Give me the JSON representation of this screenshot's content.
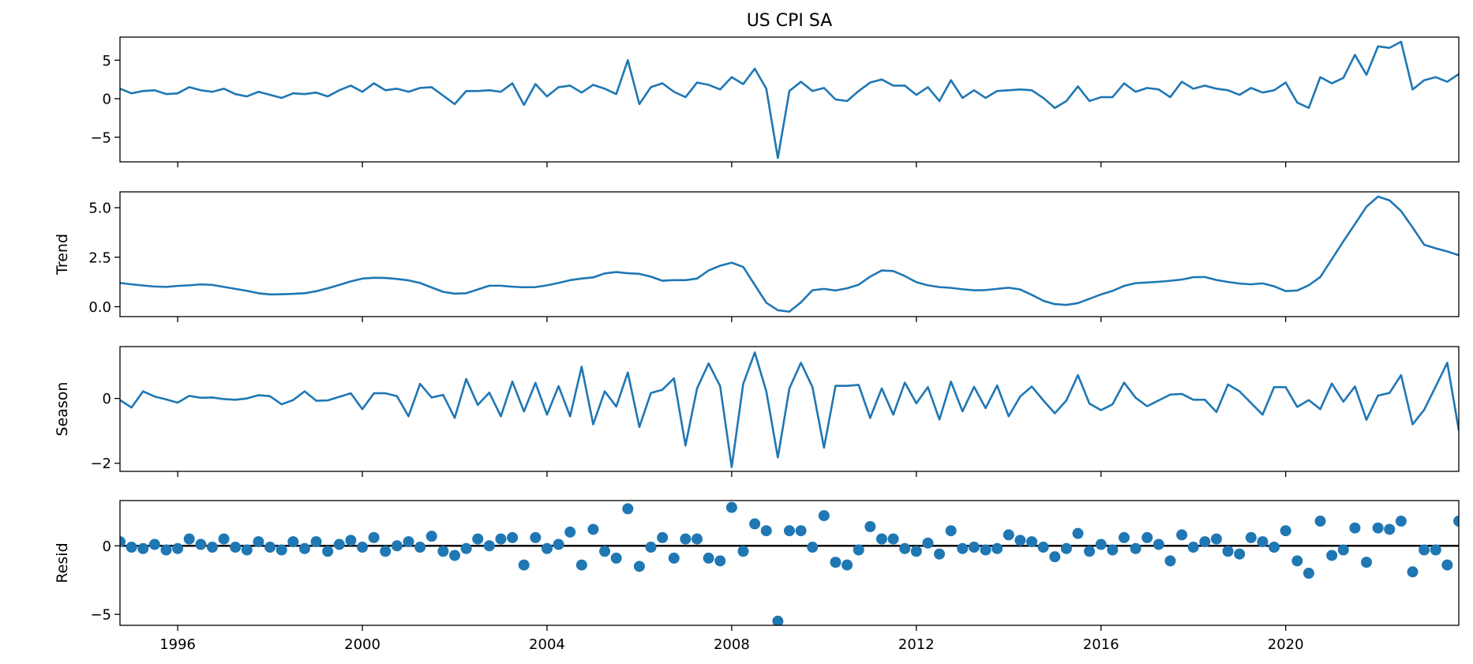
{
  "chart_data": {
    "type": "line",
    "title": "US CPI SA",
    "x_axis": {
      "type": "date",
      "range": [
        "1994-10-01",
        "2023-10-01"
      ],
      "ticks": [
        "1996",
        "2000",
        "2004",
        "2008",
        "2012",
        "2016",
        "2020"
      ]
    },
    "frequency": "quarterly",
    "x_start": "1994-10-01",
    "grid": false,
    "colors": {
      "series": "#1f77b4",
      "reference_line": "#000000"
    },
    "panels": [
      {
        "name": "observed",
        "ylabel": "",
        "type": "line",
        "ylim": [
          -8.2,
          8.0
        ],
        "yticks": [
          "5",
          "0",
          "−5"
        ],
        "ytick_values": [
          5,
          0,
          -5
        ],
        "values": [
          1.3,
          0.7,
          1.0,
          1.1,
          0.6,
          0.7,
          1.5,
          1.1,
          0.9,
          1.3,
          0.6,
          0.3,
          0.9,
          0.5,
          0.1,
          0.7,
          0.6,
          0.8,
          0.3,
          1.1,
          1.7,
          0.9,
          2.0,
          1.1,
          1.3,
          0.9,
          1.4,
          1.5,
          0.4,
          -0.7,
          1.0,
          1.0,
          1.1,
          0.9,
          2.0,
          -0.8,
          1.9,
          0.3,
          1.5,
          1.7,
          0.8,
          1.8,
          1.3,
          0.6,
          5.0,
          -0.7,
          1.5,
          2.0,
          0.9,
          0.2,
          2.1,
          1.8,
          1.2,
          2.8,
          1.9,
          3.9,
          1.3,
          -7.7,
          1.0,
          2.2,
          1.0,
          1.4,
          -0.1,
          -0.3,
          1.0,
          2.1,
          2.5,
          1.7,
          1.7,
          0.5,
          1.5,
          -0.3,
          2.4,
          0.1,
          1.1,
          0.1,
          1.0,
          1.1,
          1.2,
          1.1,
          0.1,
          -1.2,
          -0.3,
          1.6,
          -0.3,
          0.2,
          0.2,
          2.0,
          0.9,
          1.4,
          1.2,
          0.2,
          2.2,
          1.3,
          1.7,
          1.3,
          1.1,
          0.5,
          1.4,
          0.8,
          1.1,
          2.1,
          -0.5,
          -1.2,
          2.8,
          2.0,
          2.7,
          5.7,
          3.1,
          6.8,
          6.6,
          7.4,
          1.2,
          2.4,
          2.8,
          2.2,
          3.2,
          1.5
        ]
      },
      {
        "name": "trend",
        "ylabel": "Trend",
        "type": "line",
        "ylim": [
          -0.5,
          5.8
        ],
        "yticks": [
          "0.0",
          "2.5",
          "5.0"
        ],
        "ytick_values": [
          0,
          2.5,
          5
        ],
        "values": [
          1.2,
          1.13,
          1.07,
          1.02,
          1.0,
          1.05,
          1.08,
          1.13,
          1.1,
          1.0,
          0.9,
          0.8,
          0.68,
          0.62,
          0.63,
          0.65,
          0.68,
          0.78,
          0.93,
          1.1,
          1.28,
          1.42,
          1.46,
          1.45,
          1.4,
          1.33,
          1.2,
          0.97,
          0.75,
          0.66,
          0.68,
          0.87,
          1.06,
          1.06,
          1.01,
          0.98,
          0.99,
          1.08,
          1.2,
          1.34,
          1.42,
          1.48,
          1.68,
          1.75,
          1.69,
          1.66,
          1.52,
          1.31,
          1.34,
          1.34,
          1.42,
          1.83,
          2.07,
          2.22,
          2.01,
          1.1,
          0.2,
          -0.18,
          -0.25,
          0.22,
          0.83,
          0.9,
          0.82,
          0.93,
          1.11,
          1.52,
          1.83,
          1.8,
          1.55,
          1.24,
          1.08,
          0.99,
          0.95,
          0.88,
          0.83,
          0.84,
          0.9,
          0.96,
          0.87,
          0.6,
          0.3,
          0.13,
          0.09,
          0.18,
          0.4,
          0.62,
          0.8,
          1.05,
          1.19,
          1.22,
          1.26,
          1.31,
          1.37,
          1.49,
          1.5,
          1.35,
          1.25,
          1.17,
          1.13,
          1.18,
          1.03,
          0.79,
          0.82,
          1.08,
          1.5,
          2.4,
          3.3,
          4.17,
          5.05,
          5.56,
          5.37,
          4.83,
          4.0,
          3.13,
          2.95,
          2.79,
          2.6,
          2.46
        ]
      },
      {
        "name": "seasonal",
        "ylabel": "Season",
        "type": "line",
        "ylim": [
          -2.25,
          1.6
        ],
        "yticks": [
          "−2",
          "0"
        ],
        "ytick_values": [
          -2,
          0
        ],
        "values": [
          -0.05,
          -0.28,
          0.22,
          0.06,
          -0.03,
          -0.13,
          0.08,
          0.02,
          0.03,
          -0.02,
          -0.04,
          0.0,
          0.1,
          0.07,
          -0.18,
          -0.05,
          0.22,
          -0.07,
          -0.06,
          0.05,
          0.16,
          -0.33,
          0.16,
          0.16,
          0.07,
          -0.55,
          0.45,
          0.03,
          0.11,
          -0.6,
          0.6,
          -0.2,
          0.18,
          -0.55,
          0.52,
          -0.4,
          0.48,
          -0.5,
          0.38,
          -0.55,
          0.98,
          -0.8,
          0.22,
          -0.25,
          0.8,
          -0.88,
          0.17,
          0.27,
          0.62,
          -1.45,
          0.31,
          1.08,
          0.38,
          -2.12,
          0.45,
          1.42,
          0.22,
          -1.82,
          0.31,
          1.1,
          0.35,
          -1.52,
          0.39,
          0.39,
          0.42,
          -0.6,
          0.31,
          -0.5,
          0.49,
          -0.15,
          0.35,
          -0.65,
          0.52,
          -0.4,
          0.36,
          -0.3,
          0.4,
          -0.55,
          0.06,
          0.37,
          -0.06,
          -0.46,
          -0.06,
          0.72,
          -0.16,
          -0.36,
          -0.18,
          0.49,
          0.02,
          -0.24,
          -0.06,
          0.12,
          0.14,
          -0.04,
          -0.04,
          -0.42,
          0.43,
          0.22,
          -0.14,
          -0.5,
          0.35,
          0.35,
          -0.26,
          -0.05,
          -0.33,
          0.46,
          -0.1,
          0.37,
          -0.66,
          0.09,
          0.17,
          0.72,
          -0.8,
          -0.35,
          0.37,
          1.1,
          -0.98,
          -0.8
        ]
      },
      {
        "name": "residual",
        "ylabel": "Resid",
        "type": "scatter",
        "ylim": [
          -5.8,
          3.3
        ],
        "yticks": [
          "−5",
          "0"
        ],
        "ytick_values": [
          -5,
          0
        ],
        "reference_line": 0,
        "values": [
          0.3,
          -0.1,
          -0.2,
          0.1,
          -0.3,
          -0.2,
          0.5,
          0.1,
          -0.1,
          0.5,
          -0.1,
          -0.3,
          0.3,
          -0.1,
          -0.3,
          0.3,
          -0.2,
          0.3,
          -0.4,
          0.1,
          0.4,
          -0.1,
          0.6,
          -0.4,
          0.0,
          0.3,
          -0.1,
          0.7,
          -0.4,
          -0.7,
          -0.2,
          0.5,
          0.0,
          0.5,
          0.6,
          -1.4,
          0.6,
          -0.2,
          0.1,
          1.0,
          -1.4,
          1.2,
          -0.4,
          -0.9,
          2.7,
          -1.5,
          -0.1,
          0.6,
          -0.9,
          0.5,
          0.5,
          -0.9,
          -1.1,
          2.8,
          -0.4,
          1.6,
          1.1,
          -5.5,
          1.1,
          1.1,
          -0.1,
          2.2,
          -1.2,
          -1.4,
          -0.3,
          1.4,
          0.5,
          0.5,
          -0.2,
          -0.4,
          0.2,
          -0.6,
          1.1,
          -0.2,
          -0.1,
          -0.3,
          -0.2,
          0.8,
          0.4,
          0.3,
          -0.1,
          -0.8,
          -0.2,
          0.9,
          -0.4,
          0.1,
          -0.3,
          0.6,
          -0.2,
          0.6,
          0.1,
          -1.1,
          0.8,
          -0.1,
          0.3,
          0.5,
          -0.4,
          -0.6,
          0.6,
          0.3,
          -0.1,
          1.1,
          -1.1,
          -2.0,
          1.8,
          -0.7,
          -0.3,
          1.3,
          -1.2,
          1.3,
          1.2,
          1.8,
          -1.9,
          -0.3,
          -0.3,
          -1.4,
          1.8,
          -0.2
        ]
      }
    ]
  }
}
